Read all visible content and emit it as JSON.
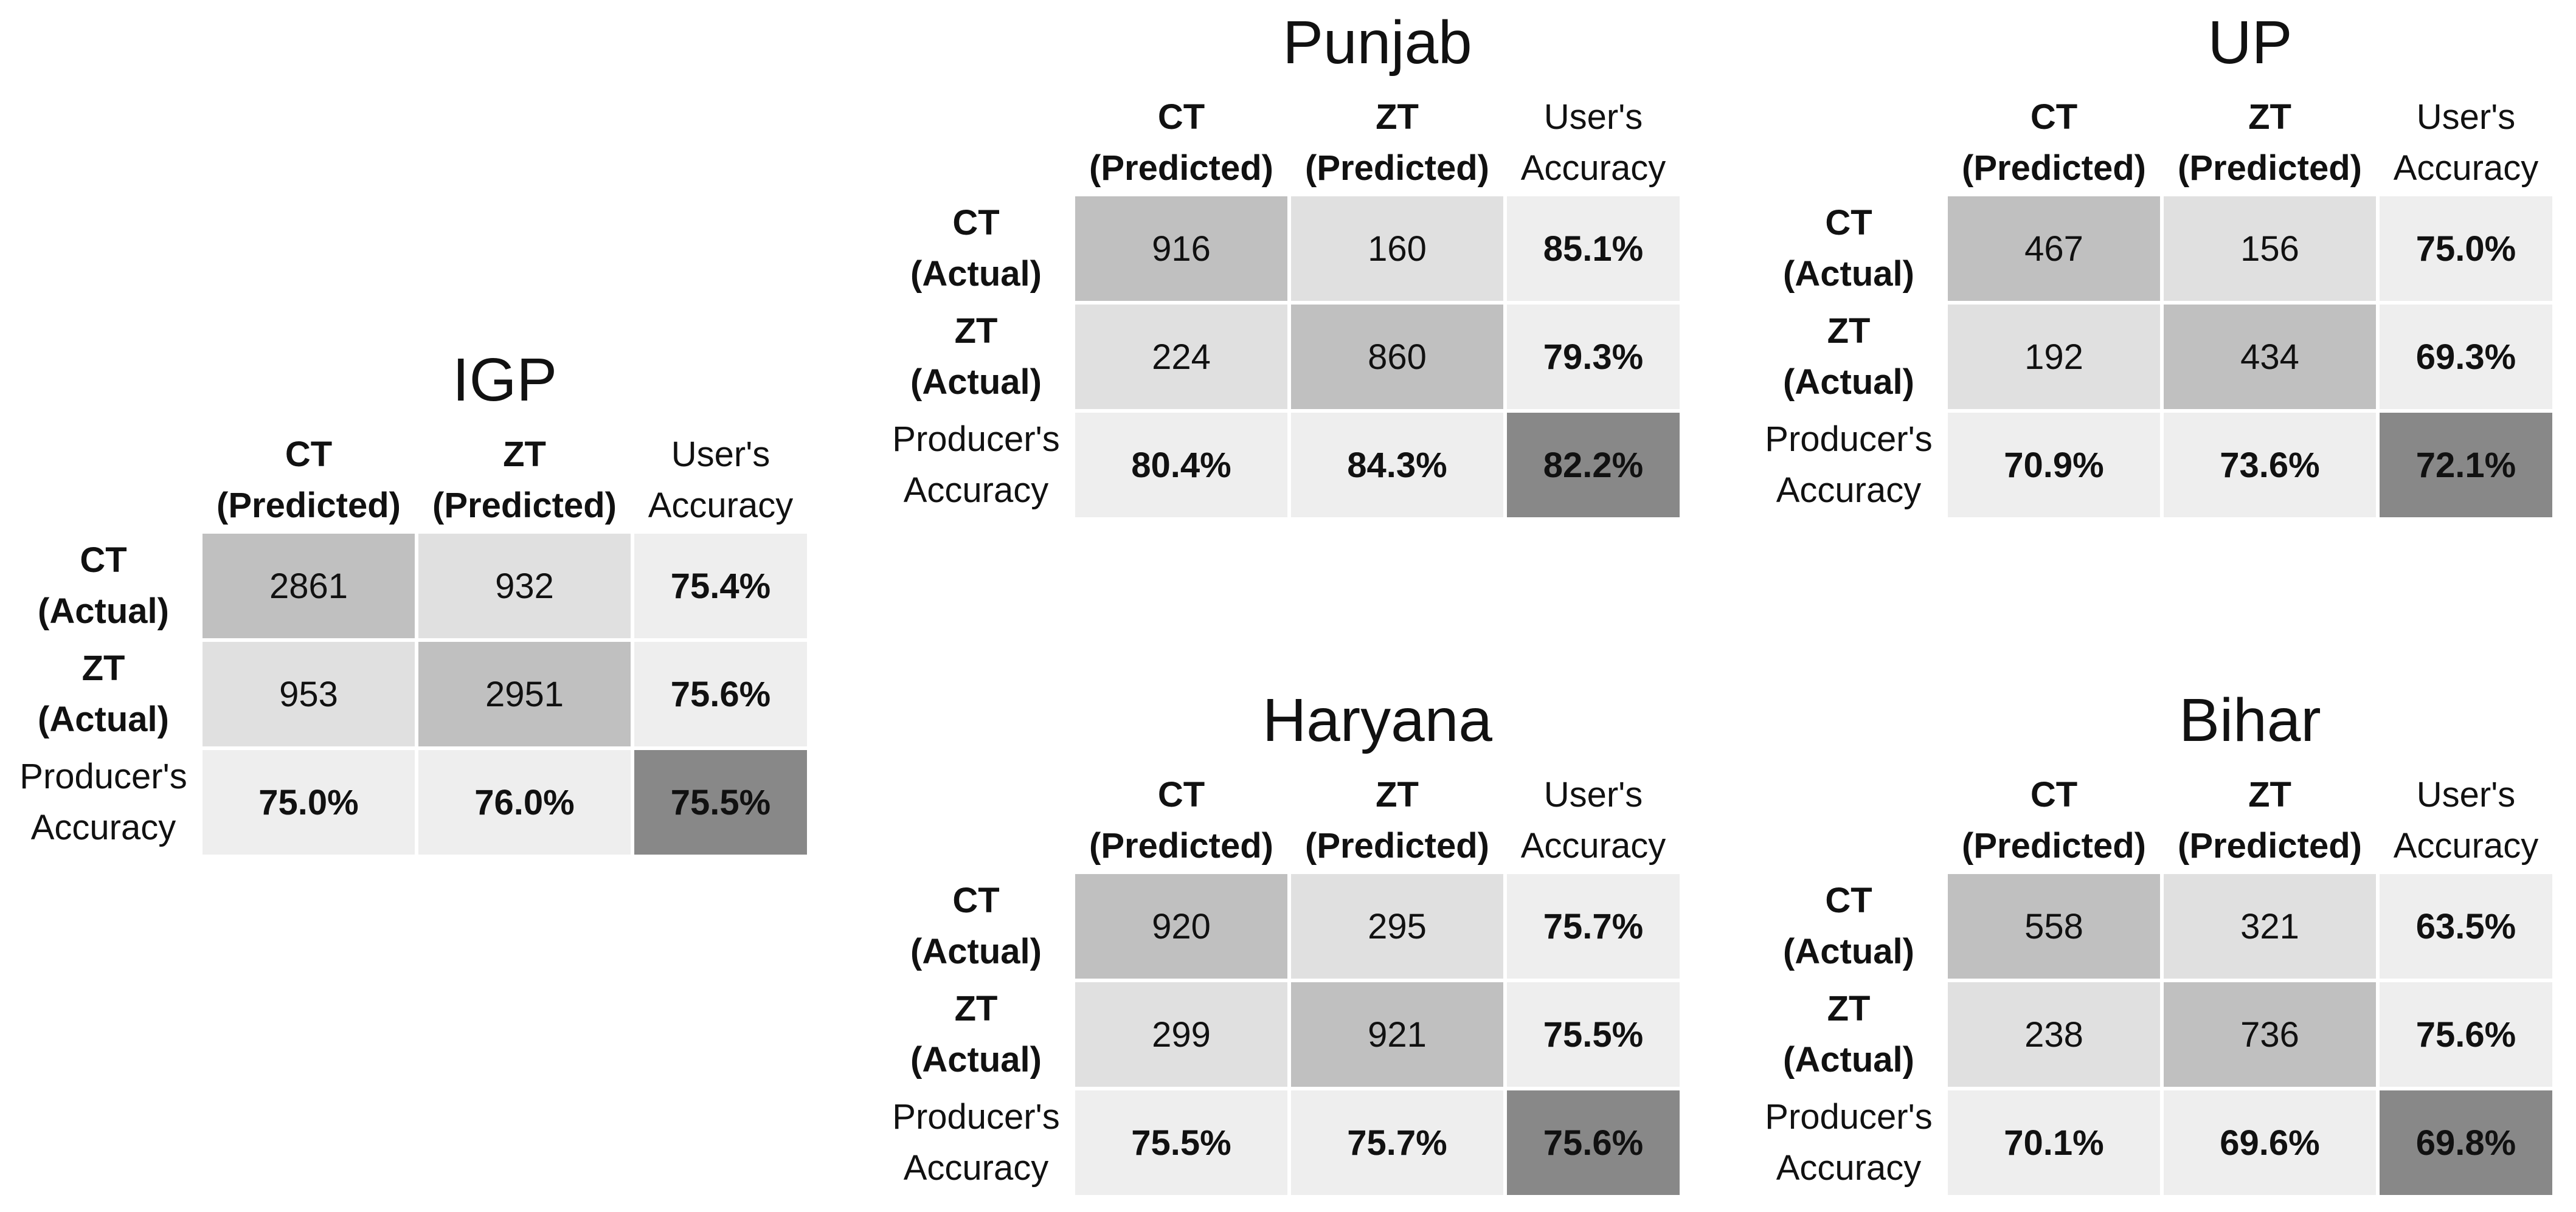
{
  "chart_data": [
    {
      "type": "table",
      "title": "IGP",
      "columns": [
        "CT\n(Predicted)",
        "ZT\n(Predicted)",
        "User's\nAccuracy"
      ],
      "rows": [
        "CT\n(Actual)",
        "ZT\n(Actual)",
        "Producer's\nAccuracy"
      ],
      "cells": [
        [
          "2861",
          "932",
          "75.4%"
        ],
        [
          "953",
          "2951",
          "75.6%"
        ],
        [
          "75.0%",
          "76.0%",
          "75.5%"
        ]
      ]
    },
    {
      "type": "table",
      "title": "Punjab",
      "columns": [
        "CT\n(Predicted)",
        "ZT\n(Predicted)",
        "User's\nAccuracy"
      ],
      "rows": [
        "CT\n(Actual)",
        "ZT\n(Actual)",
        "Producer's\nAccuracy"
      ],
      "cells": [
        [
          "916",
          "160",
          "85.1%"
        ],
        [
          "224",
          "860",
          "79.3%"
        ],
        [
          "80.4%",
          "84.3%",
          "82.2%"
        ]
      ]
    },
    {
      "type": "table",
      "title": "UP",
      "columns": [
        "CT\n(Predicted)",
        "ZT\n(Predicted)",
        "User's\nAccuracy"
      ],
      "rows": [
        "CT\n(Actual)",
        "ZT\n(Actual)",
        "Producer's\nAccuracy"
      ],
      "cells": [
        [
          "467",
          "156",
          "75.0%"
        ],
        [
          "192",
          "434",
          "69.3%"
        ],
        [
          "70.9%",
          "73.6%",
          "72.1%"
        ]
      ]
    },
    {
      "type": "table",
      "title": "Haryana",
      "columns": [
        "CT\n(Predicted)",
        "ZT\n(Predicted)",
        "User's\nAccuracy"
      ],
      "rows": [
        "CT\n(Actual)",
        "ZT\n(Actual)",
        "Producer's\nAccuracy"
      ],
      "cells": [
        [
          "920",
          "295",
          "75.7%"
        ],
        [
          "299",
          "921",
          "75.5%"
        ],
        [
          "75.5%",
          "75.7%",
          "75.6%"
        ]
      ]
    },
    {
      "type": "table",
      "title": "Bihar",
      "columns": [
        "CT\n(Predicted)",
        "ZT\n(Predicted)",
        "User's\nAccuracy"
      ],
      "rows": [
        "CT\n(Actual)",
        "ZT\n(Actual)",
        "Producer's\nAccuracy"
      ],
      "cells": [
        [
          "558",
          "321",
          "63.5%"
        ],
        [
          "238",
          "736",
          "75.6%"
        ],
        [
          "70.1%",
          "69.6%",
          "69.8%"
        ]
      ]
    }
  ],
  "colors": {
    "correct_cell": "#c0c0c0",
    "error_cell": "#e0e0e0",
    "accuracy_cell": "#eeeeee",
    "overall_cell": "#888888"
  }
}
